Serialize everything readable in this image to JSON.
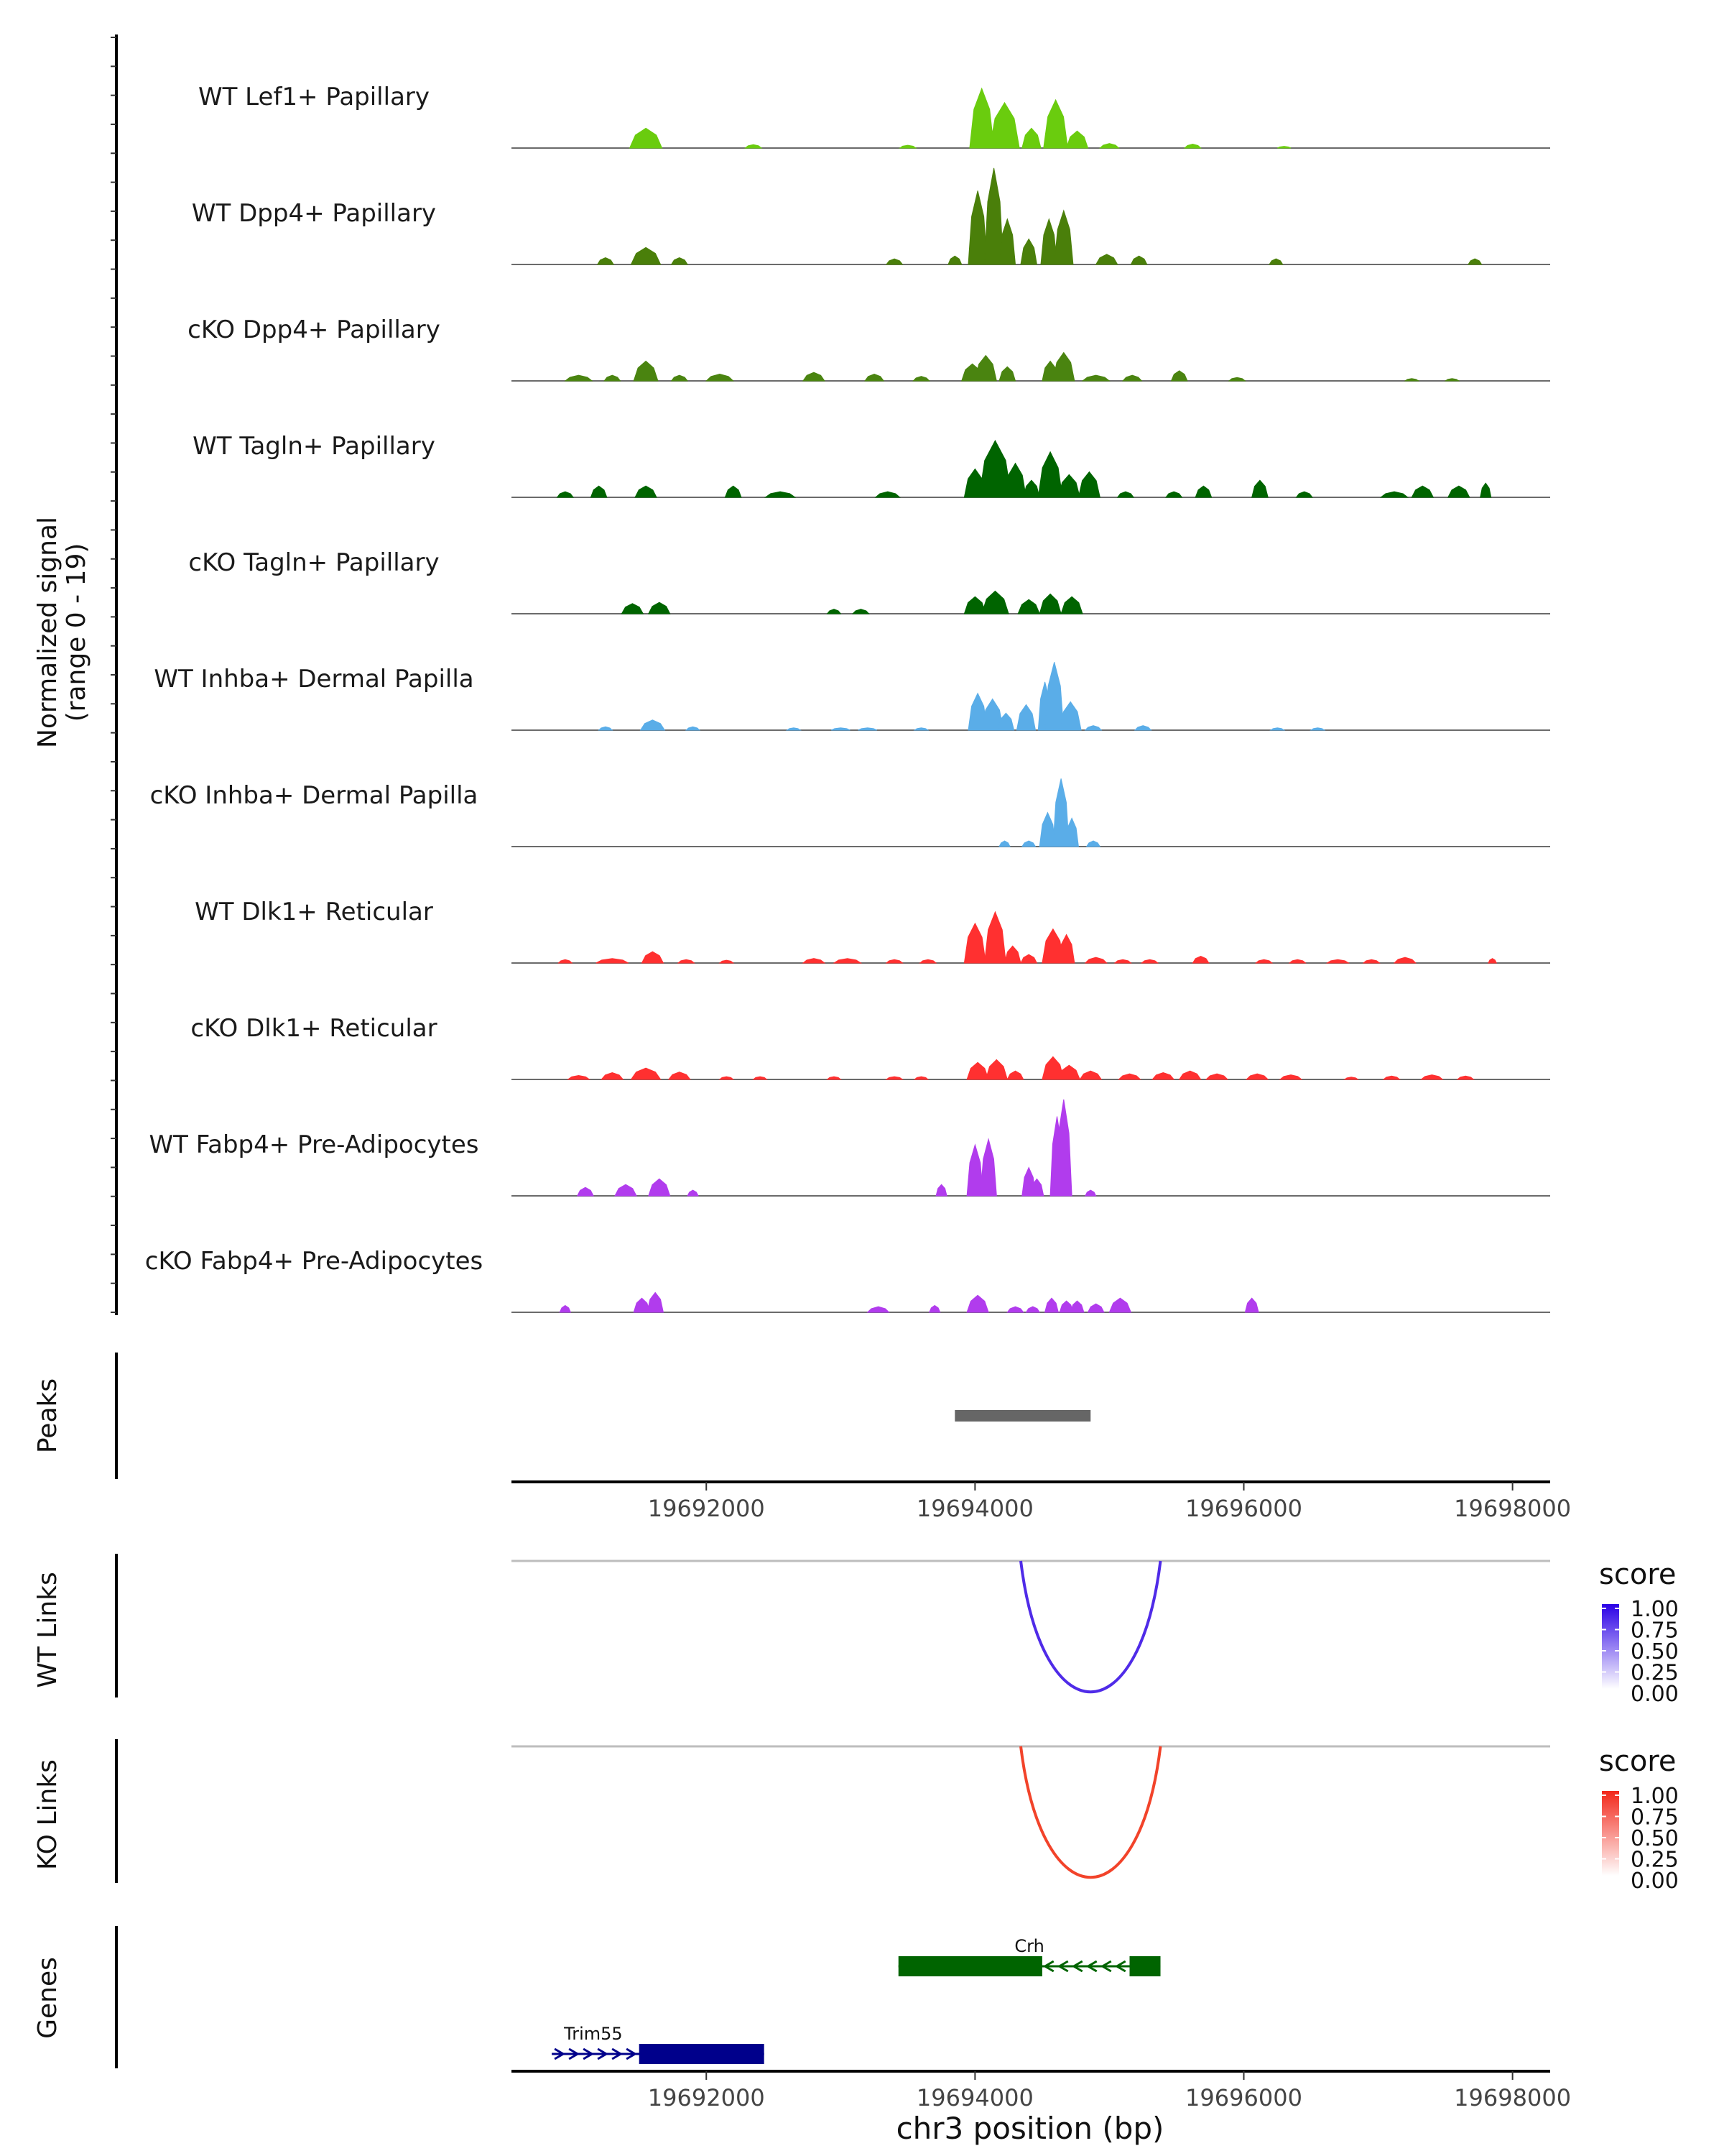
{
  "chart_data": {
    "type": "genome-browser",
    "region": {
      "chrom": "chr3",
      "xlim": [
        19690550,
        19698280
      ]
    },
    "x_ticks": [
      19692000,
      19694000,
      19696000,
      19698000
    ],
    "x_tick_labels": [
      "19692000",
      "19694000",
      "19696000",
      "19698000"
    ],
    "xlabel": "chr3 position (bp)",
    "coverage": {
      "ylabel": "Normalized signal",
      "ylabel2": "(range 0 - 19)",
      "ylim": [
        0,
        19
      ],
      "tracks": [
        {
          "label": "WT Lef1+ Papillary",
          "color": "#6ACC0E",
          "peaks": [
            [
              19691550,
              120,
              3.5
            ],
            [
              19692350,
              60,
              0.6
            ],
            [
              19693500,
              60,
              0.5
            ],
            [
              19694050,
              90,
              10.5
            ],
            [
              19694220,
              110,
              8.0
            ],
            [
              19694420,
              70,
              3.5
            ],
            [
              19694600,
              90,
              8.5
            ],
            [
              19694760,
              80,
              3.0
            ],
            [
              19695000,
              70,
              0.8
            ],
            [
              19695620,
              60,
              0.7
            ],
            [
              19696300,
              50,
              0.3
            ]
          ]
        },
        {
          "label": "WT Dpp4+ Papillary",
          "color": "#4A7F0A",
          "peaks": [
            [
              19691250,
              60,
              1.2
            ],
            [
              19691550,
              110,
              3.0
            ],
            [
              19691800,
              60,
              1.2
            ],
            [
              19693400,
              60,
              1.0
            ],
            [
              19693850,
              50,
              1.5
            ],
            [
              19694020,
              70,
              13.0
            ],
            [
              19694140,
              70,
              17.0
            ],
            [
              19694240,
              60,
              8.0
            ],
            [
              19694400,
              60,
              4.5
            ],
            [
              19694550,
              60,
              8.0
            ],
            [
              19694660,
              70,
              9.5
            ],
            [
              19694980,
              80,
              1.8
            ],
            [
              19695220,
              60,
              1.5
            ],
            [
              19696240,
              50,
              1.0
            ],
            [
              19697720,
              50,
              1.0
            ]
          ]
        },
        {
          "label": "cKO Dpp4+ Papillary",
          "color": "#4A8410",
          "peaks": [
            [
              19691050,
              100,
              1.0
            ],
            [
              19691300,
              60,
              1.0
            ],
            [
              19691550,
              90,
              3.5
            ],
            [
              19691800,
              60,
              1.0
            ],
            [
              19692100,
              100,
              1.2
            ],
            [
              19692800,
              80,
              1.5
            ],
            [
              19693250,
              70,
              1.2
            ],
            [
              19693600,
              60,
              0.8
            ],
            [
              19693980,
              80,
              3.0
            ],
            [
              19694080,
              80,
              4.5
            ],
            [
              19694240,
              60,
              2.5
            ],
            [
              19694560,
              60,
              3.5
            ],
            [
              19694660,
              80,
              5.0
            ],
            [
              19694900,
              100,
              1.0
            ],
            [
              19695170,
              70,
              1.0
            ],
            [
              19695520,
              60,
              1.8
            ],
            [
              19695950,
              60,
              0.6
            ],
            [
              19697250,
              50,
              0.4
            ],
            [
              19697550,
              50,
              0.4
            ]
          ]
        },
        {
          "label": "WT Tagln+ Papillary",
          "color": "#006400",
          "peaks": [
            [
              19690950,
              60,
              1.0
            ],
            [
              19691200,
              60,
              2.0
            ],
            [
              19691550,
              80,
              2.0
            ],
            [
              19692200,
              60,
              2.0
            ],
            [
              19692550,
              110,
              1.0
            ],
            [
              19693350,
              90,
              1.0
            ],
            [
              19694000,
              80,
              5.0
            ],
            [
              19694150,
              120,
              10.0
            ],
            [
              19694300,
              80,
              6.0
            ],
            [
              19694420,
              60,
              3.0
            ],
            [
              19694560,
              90,
              8.0
            ],
            [
              19694700,
              80,
              4.0
            ],
            [
              19694850,
              80,
              4.5
            ],
            [
              19695120,
              60,
              1.0
            ],
            [
              19695480,
              60,
              1.0
            ],
            [
              19695700,
              60,
              2.0
            ],
            [
              19696120,
              60,
              3.0
            ],
            [
              19696450,
              60,
              1.0
            ],
            [
              19697120,
              100,
              1.0
            ],
            [
              19697330,
              80,
              2.0
            ],
            [
              19697600,
              80,
              2.0
            ],
            [
              19697800,
              40,
              2.5
            ]
          ]
        },
        {
          "label": "cKO Tagln+ Papillary",
          "color": "#006400",
          "peaks": [
            [
              19691450,
              80,
              1.8
            ],
            [
              19691650,
              80,
              2.0
            ],
            [
              19692950,
              50,
              0.8
            ],
            [
              19693150,
              60,
              0.8
            ],
            [
              19694000,
              80,
              3.0
            ],
            [
              19694150,
              100,
              4.0
            ],
            [
              19694400,
              80,
              2.5
            ],
            [
              19694560,
              80,
              3.5
            ],
            [
              19694720,
              80,
              3.0
            ]
          ]
        },
        {
          "label": "WT Inhba+ Dermal Papilla",
          "color": "#5AADE8",
          "peaks": [
            [
              19691250,
              50,
              0.6
            ],
            [
              19691600,
              90,
              1.8
            ],
            [
              19691900,
              50,
              0.6
            ],
            [
              19692650,
              50,
              0.4
            ],
            [
              19693000,
              70,
              0.4
            ],
            [
              19693200,
              70,
              0.4
            ],
            [
              19693600,
              50,
              0.4
            ],
            [
              19694020,
              70,
              6.5
            ],
            [
              19694130,
              80,
              5.5
            ],
            [
              19694230,
              60,
              3.0
            ],
            [
              19694380,
              70,
              4.5
            ],
            [
              19694520,
              50,
              8.5
            ],
            [
              19694590,
              70,
              12.0
            ],
            [
              19694710,
              80,
              5.0
            ],
            [
              19694880,
              60,
              0.8
            ],
            [
              19695250,
              60,
              0.8
            ],
            [
              19696250,
              50,
              0.4
            ],
            [
              19696550,
              50,
              0.4
            ]
          ]
        },
        {
          "label": "cKO Inhba+ Dermal Papilla",
          "color": "#5AADE8",
          "peaks": [
            [
              19694220,
              40,
              1.0
            ],
            [
              19694400,
              50,
              1.0
            ],
            [
              19694540,
              60,
              6.0
            ],
            [
              19694640,
              60,
              12.0
            ],
            [
              19694720,
              50,
              5.0
            ],
            [
              19694880,
              50,
              1.0
            ]
          ]
        },
        {
          "label": "WT Dlk1+ Reticular",
          "color": "#FF3030",
          "peaks": [
            [
              19690950,
              50,
              0.6
            ],
            [
              19691300,
              120,
              0.8
            ],
            [
              19691600,
              80,
              2.0
            ],
            [
              19691850,
              60,
              0.6
            ],
            [
              19692150,
              50,
              0.5
            ],
            [
              19692800,
              80,
              0.8
            ],
            [
              19693050,
              100,
              0.8
            ],
            [
              19693400,
              60,
              0.6
            ],
            [
              19693650,
              60,
              0.6
            ],
            [
              19694000,
              80,
              7.0
            ],
            [
              19694150,
              80,
              9.0
            ],
            [
              19694280,
              60,
              3.0
            ],
            [
              19694400,
              60,
              1.5
            ],
            [
              19694580,
              80,
              6.0
            ],
            [
              19694680,
              60,
              5.0
            ],
            [
              19694900,
              80,
              1.0
            ],
            [
              19695100,
              60,
              0.6
            ],
            [
              19695300,
              60,
              0.6
            ],
            [
              19695680,
              60,
              1.2
            ],
            [
              19696150,
              60,
              0.6
            ],
            [
              19696400,
              60,
              0.6
            ],
            [
              19696700,
              80,
              0.6
            ],
            [
              19696950,
              60,
              0.6
            ],
            [
              19697200,
              80,
              1.0
            ],
            [
              19697850,
              30,
              0.8
            ]
          ]
        },
        {
          "label": "cKO Dlk1+ Reticular",
          "color": "#FF3030",
          "peaks": [
            [
              19691050,
              80,
              0.7
            ],
            [
              19691300,
              80,
              1.2
            ],
            [
              19691550,
              110,
              2.0
            ],
            [
              19691800,
              80,
              1.3
            ],
            [
              19692150,
              50,
              0.5
            ],
            [
              19692400,
              50,
              0.5
            ],
            [
              19692950,
              50,
              0.5
            ],
            [
              19693400,
              60,
              0.5
            ],
            [
              19693600,
              50,
              0.5
            ],
            [
              19694020,
              80,
              3.0
            ],
            [
              19694160,
              80,
              3.5
            ],
            [
              19694300,
              60,
              1.5
            ],
            [
              19694580,
              80,
              4.0
            ],
            [
              19694700,
              80,
              2.5
            ],
            [
              19694860,
              80,
              1.5
            ],
            [
              19695150,
              80,
              1.0
            ],
            [
              19695400,
              80,
              1.2
            ],
            [
              19695600,
              80,
              1.5
            ],
            [
              19695800,
              80,
              1.0
            ],
            [
              19696100,
              80,
              1.0
            ],
            [
              19696350,
              80,
              0.8
            ],
            [
              19696800,
              50,
              0.4
            ],
            [
              19697100,
              60,
              0.6
            ],
            [
              19697400,
              80,
              0.8
            ],
            [
              19697650,
              60,
              0.6
            ]
          ]
        },
        {
          "label": "WT Fabp4+ Pre-Adipocytes",
          "color": "#B13CED",
          "peaks": [
            [
              19691100,
              60,
              1.5
            ],
            [
              19691400,
              80,
              2.0
            ],
            [
              19691650,
              80,
              3.0
            ],
            [
              19691900,
              40,
              1.0
            ],
            [
              19693750,
              40,
              2.0
            ],
            [
              19694000,
              60,
              9.0
            ],
            [
              19694100,
              60,
              10.0
            ],
            [
              19694400,
              50,
              5.0
            ],
            [
              19694460,
              50,
              3.0
            ],
            [
              19694610,
              50,
              14.0
            ],
            [
              19694660,
              60,
              17.0
            ],
            [
              19694860,
              40,
              1.0
            ]
          ]
        },
        {
          "label": "cKO Fabp4+ Pre-Adipocytes",
          "color": "#B13CED",
          "peaks": [
            [
              19690950,
              40,
              1.2
            ],
            [
              19691520,
              60,
              2.5
            ],
            [
              19691620,
              60,
              3.5
            ],
            [
              19693280,
              80,
              1.0
            ],
            [
              19693700,
              40,
              1.2
            ],
            [
              19694020,
              80,
              3.0
            ],
            [
              19694300,
              60,
              1.0
            ],
            [
              19694430,
              50,
              1.0
            ],
            [
              19694570,
              50,
              2.5
            ],
            [
              19694680,
              50,
              2.0
            ],
            [
              19694760,
              50,
              2.0
            ],
            [
              19694900,
              60,
              1.5
            ],
            [
              19695080,
              80,
              2.5
            ],
            [
              19696060,
              50,
              2.5
            ]
          ]
        }
      ]
    },
    "peaks_track": {
      "label": "Peaks",
      "regions": [
        [
          19693850,
          19694860
        ]
      ],
      "color": "#666666"
    },
    "links": [
      {
        "label": "WT Links",
        "start": 19694340,
        "end": 19695380,
        "score": 1.0,
        "color": "#4F2BE8",
        "legend": {
          "title": "score",
          "values": [
            "1.00",
            "0.75",
            "0.50",
            "0.25",
            "0.00"
          ],
          "colors": [
            "#2B00E6",
            "#FFFFFF"
          ]
        }
      },
      {
        "label": "KO Links",
        "start": 19694340,
        "end": 19695380,
        "score": 1.0,
        "color": "#F2432A",
        "legend": {
          "title": "score",
          "values": [
            "1.00",
            "0.75",
            "0.50",
            "0.25",
            "0.00"
          ],
          "colors": [
            "#F2271A",
            "#FFFFFF"
          ]
        }
      }
    ],
    "genes": {
      "label": "Genes",
      "items": [
        {
          "name": "Crh",
          "start": 19693430,
          "end": 19695380,
          "strand": "-",
          "color": "#006400",
          "exons": [
            [
              19693430,
              19694500
            ],
            [
              19695150,
              19695380
            ]
          ]
        },
        {
          "name": "Trim55",
          "start": 19690850,
          "end": 19692430,
          "strand": "+",
          "color": "#00008B",
          "exons": [
            [
              19691500,
              19692430
            ]
          ]
        }
      ]
    }
  }
}
